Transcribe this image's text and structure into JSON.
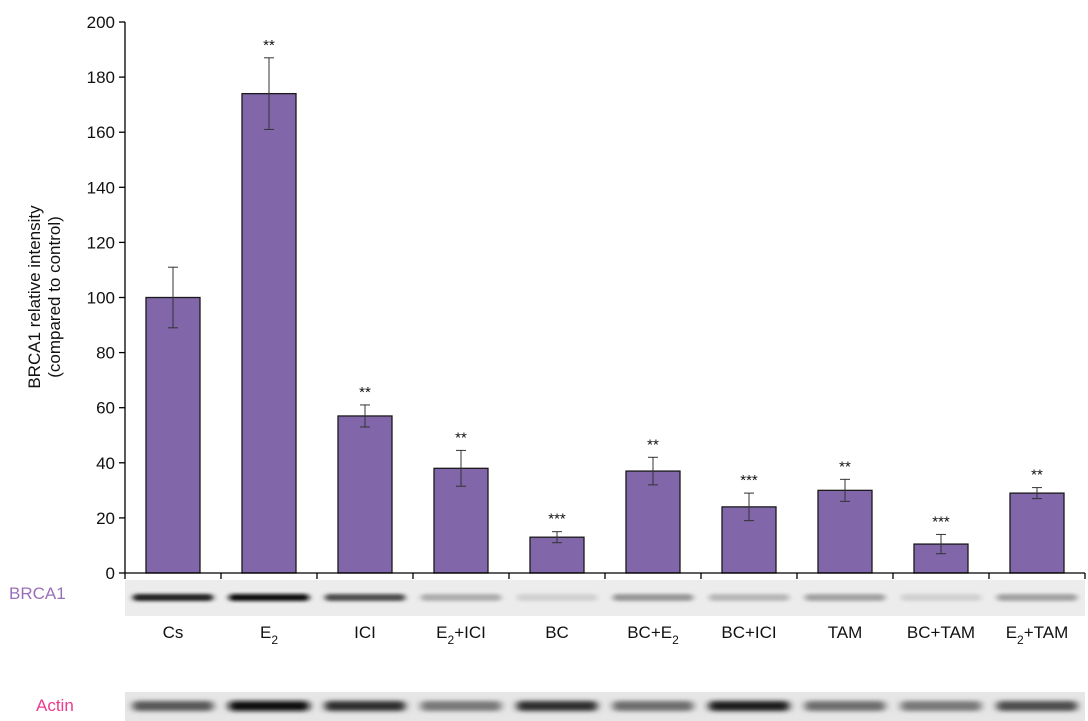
{
  "chart_data": {
    "type": "bar",
    "ylabel_line1": "BRCA1 relative intensity",
    "ylabel_line2": "(compared to control)",
    "ylim": [
      0,
      200
    ],
    "yticks": [
      "0",
      "20",
      "40",
      "60",
      "80",
      "100",
      "120",
      "140",
      "160",
      "180",
      "200"
    ],
    "categories": [
      {
        "base": "Cs",
        "sub": "",
        "tail": ""
      },
      {
        "base": "E",
        "sub": "2",
        "tail": ""
      },
      {
        "base": "ICI",
        "sub": "",
        "tail": ""
      },
      {
        "base": "E",
        "sub": "2",
        "tail": "+ICI"
      },
      {
        "base": "BC",
        "sub": "",
        "tail": ""
      },
      {
        "base": "BC+E",
        "sub": "2",
        "tail": ""
      },
      {
        "base": "BC+ICI",
        "sub": "",
        "tail": ""
      },
      {
        "base": "TAM",
        "sub": "",
        "tail": ""
      },
      {
        "base": "BC+TAM",
        "sub": "",
        "tail": ""
      },
      {
        "base": "E",
        "sub": "2",
        "tail": "+TAM"
      }
    ],
    "values": [
      100,
      174,
      57,
      38,
      13,
      37,
      24,
      30,
      10.5,
      29
    ],
    "errors": [
      11,
      13,
      4,
      6.5,
      2,
      5,
      5,
      4,
      3.5,
      2
    ],
    "significance": [
      "",
      "**",
      "**",
      "**",
      "***",
      "**",
      "***",
      "**",
      "***",
      "**"
    ],
    "bar_color": "#8266aa",
    "grid": false
  },
  "blots": {
    "brca1": {
      "label": "BRCA1",
      "label_color": "#9b6fb8",
      "intensities": [
        0.9,
        1.0,
        0.7,
        0.25,
        0.08,
        0.35,
        0.2,
        0.3,
        0.08,
        0.3
      ]
    },
    "actin": {
      "label": "Actin",
      "label_color": "#ee3a8c",
      "intensities": [
        0.65,
        1.0,
        0.85,
        0.5,
        0.85,
        0.55,
        0.95,
        0.55,
        0.5,
        0.7
      ]
    }
  }
}
